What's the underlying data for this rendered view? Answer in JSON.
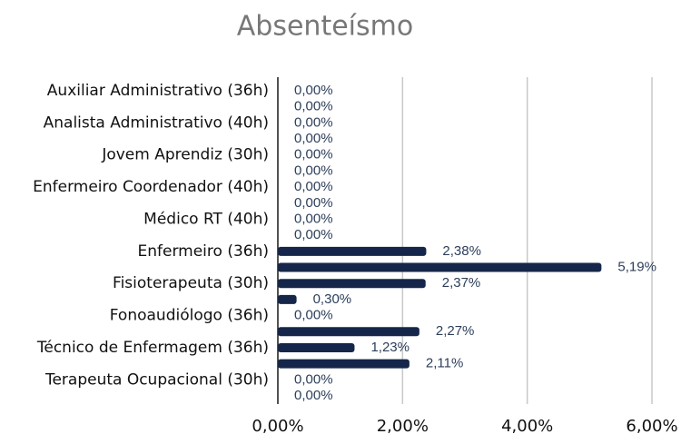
{
  "chart_data": {
    "type": "barh",
    "title": "Absenteísmo",
    "categories": [
      "Auxiliar Administrativo (36h)",
      null,
      "Analista Administrativo (40h)",
      null,
      "Jovem Aprendiz (30h)",
      null,
      "Enfermeiro Coordenador (40h)",
      null,
      "Médico RT (40h)",
      null,
      "Enfermeiro (36h)",
      null,
      "Fisioterapeuta (30h)",
      null,
      "Fonoaudiólogo (36h)",
      null,
      "Técnico de Enfermagem (36h)",
      null,
      "Terapeuta Ocupacional (30h)",
      null
    ],
    "values": [
      0,
      0,
      0,
      0,
      0,
      0,
      0,
      0,
      0,
      0,
      2.38,
      5.19,
      2.37,
      0.3,
      0,
      2.27,
      1.23,
      2.11,
      0,
      0
    ],
    "value_labels": [
      "0,00%",
      "0,00%",
      "0,00%",
      "0,00%",
      "0,00%",
      "0,00%",
      "0,00%",
      "0,00%",
      "0,00%",
      "0,00%",
      "2,38%",
      "5,19%",
      "2,37%",
      "0,30%",
      "0,00%",
      "2,27%",
      "1,23%",
      "2,11%",
      "0,00%",
      "0,00%"
    ],
    "color": "#15264a",
    "xlim": [
      0,
      6
    ],
    "xticks": [
      {
        "value": 0,
        "label": "0,00%"
      },
      {
        "value": 2,
        "label": "2,00%"
      },
      {
        "value": 4,
        "label": "4,00%"
      },
      {
        "value": 6,
        "label": "6,00%"
      }
    ],
    "grid": true
  }
}
